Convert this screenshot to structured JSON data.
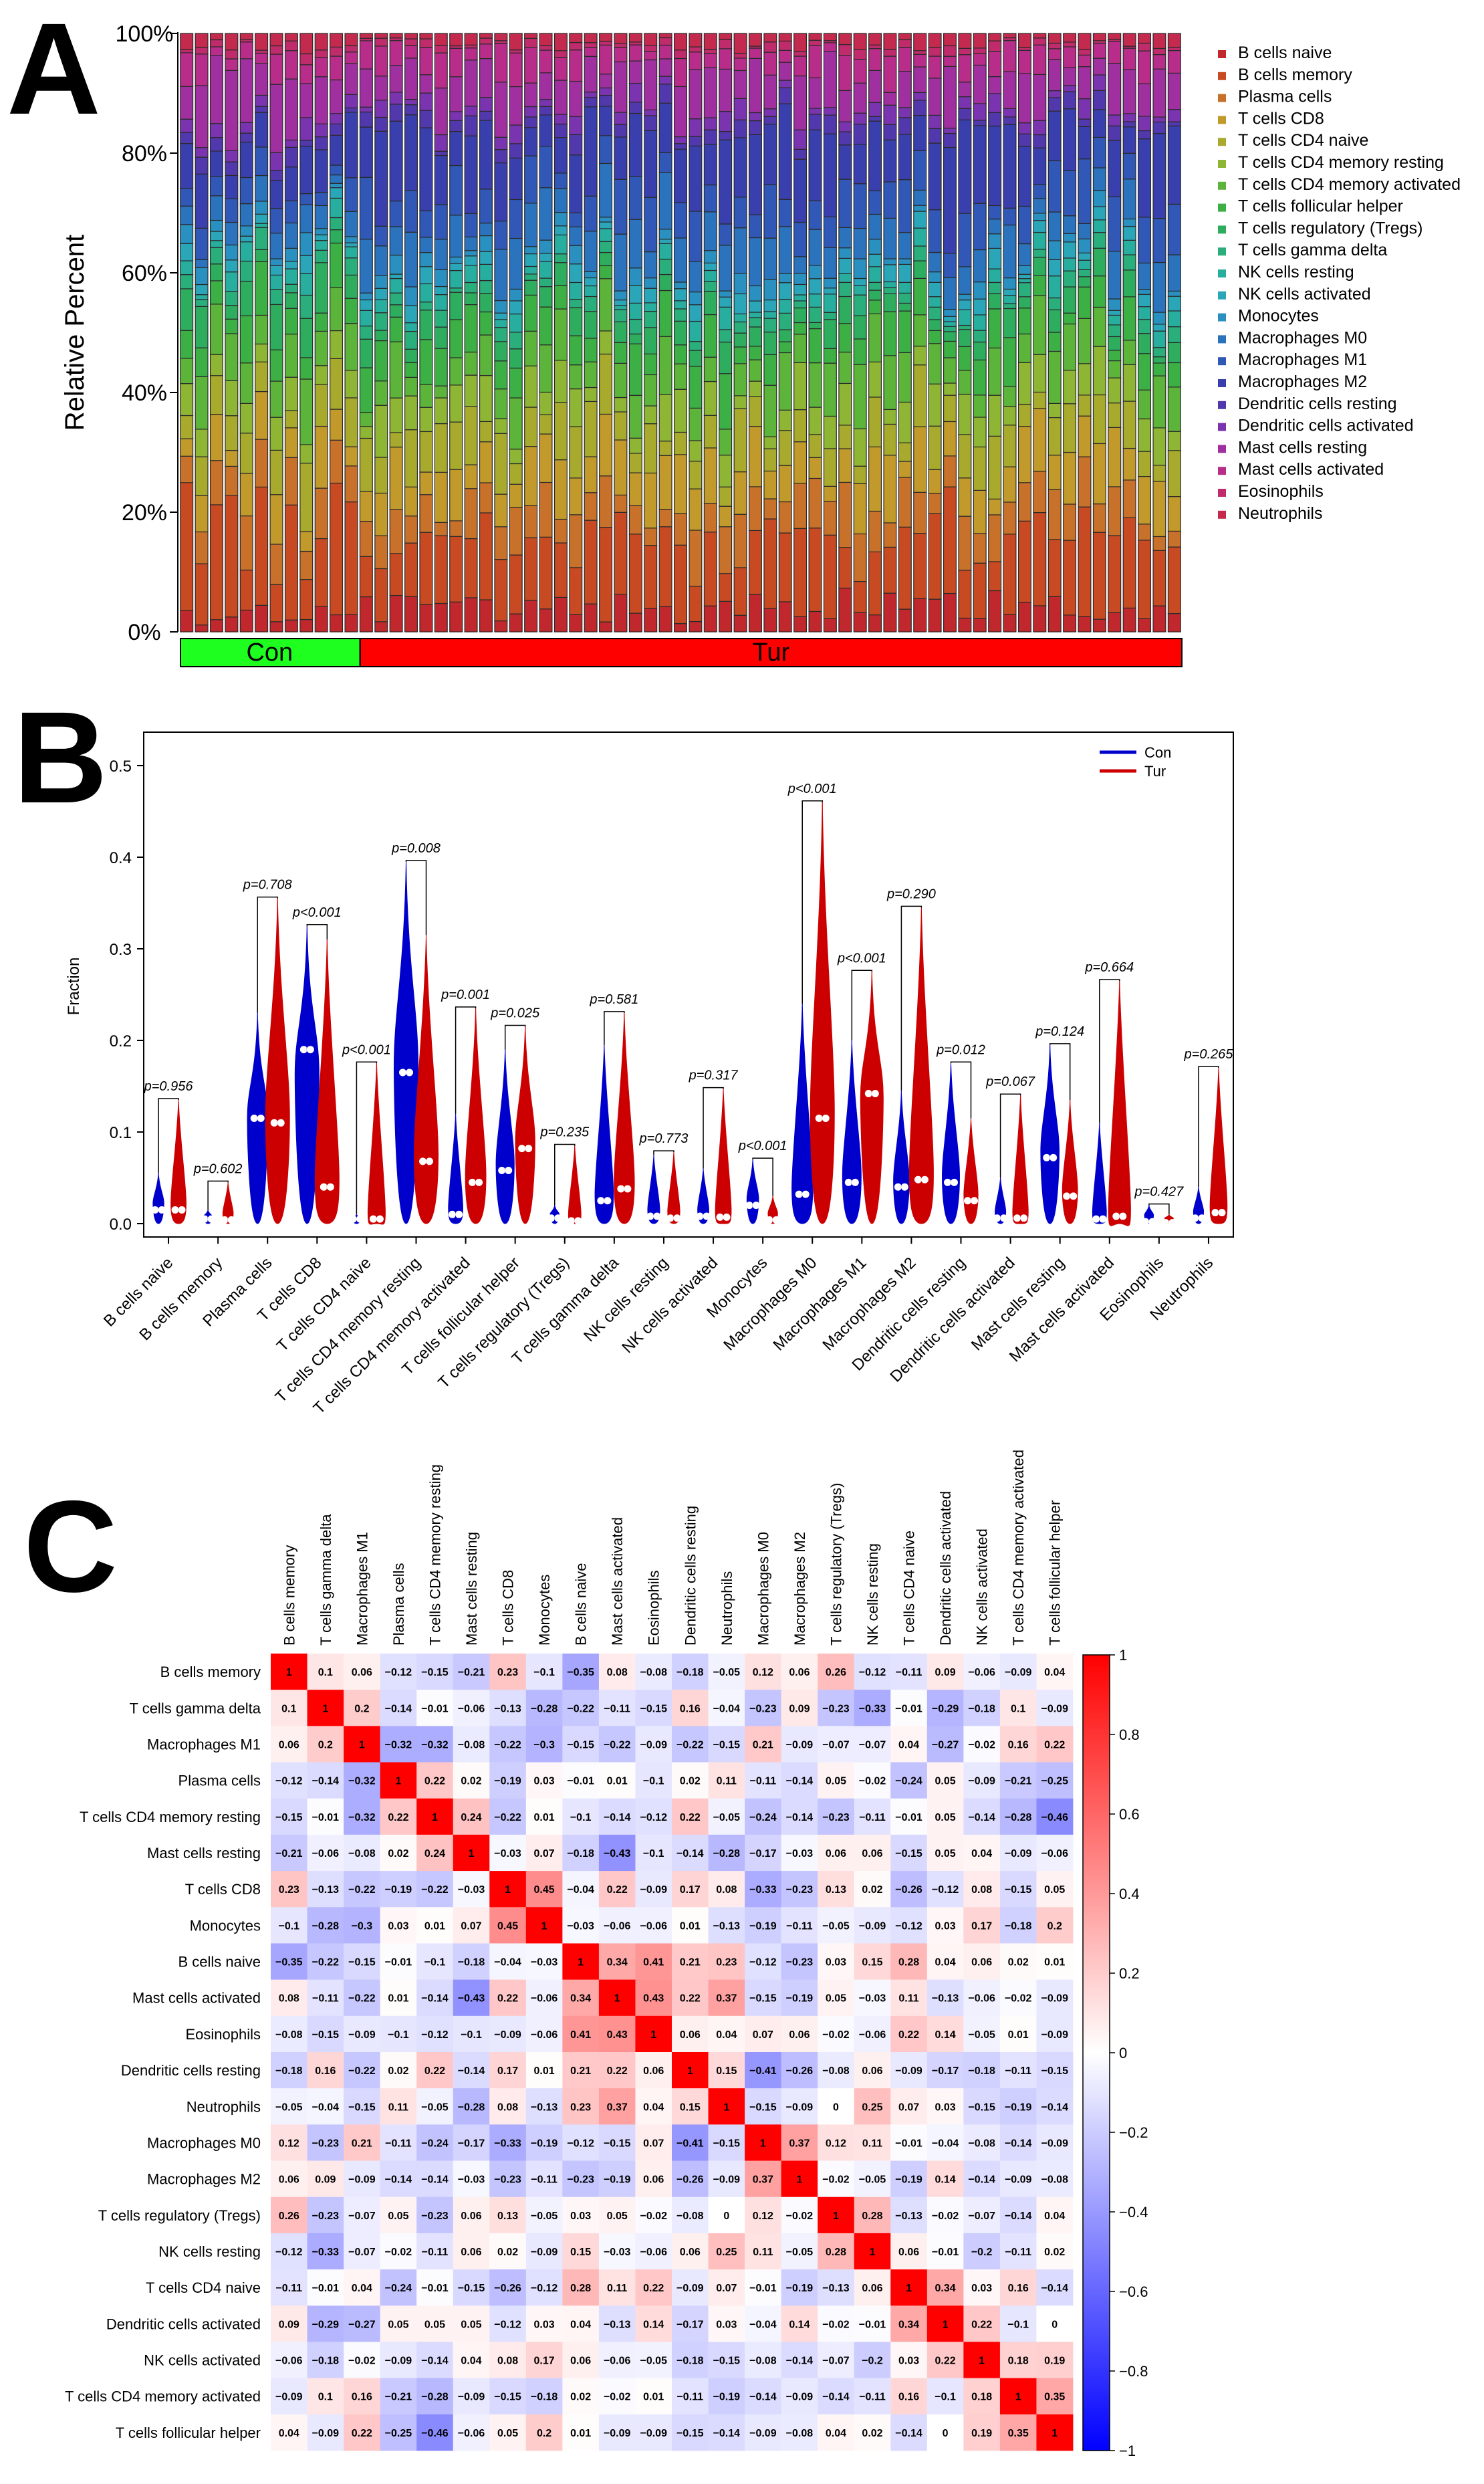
{
  "panel_letters": [
    "A",
    "B",
    "C"
  ],
  "colors": {
    "con": "#1FFF1F",
    "tur": "#FF0000",
    "violin_con": "#0000CC",
    "violin_tur": "#CC0000",
    "corr_pos": "#FF0000",
    "corr_neg": "#0000FF"
  },
  "chart_data": [
    {
      "panel": "A",
      "type": "bar",
      "stacked": true,
      "ylabel": "Relative Percent",
      "yticks": [
        "0%",
        "20%",
        "40%",
        "60%",
        "80%",
        "100%"
      ],
      "ylim": [
        0,
        100
      ],
      "groups": [
        {
          "name": "Con",
          "count": 12
        },
        {
          "name": "Tur",
          "count": 55
        }
      ],
      "legend": [
        {
          "name": "B cells naive",
          "color": "#C0282D"
        },
        {
          "name": "B cells memory",
          "color": "#C84A22"
        },
        {
          "name": "Plasma cells",
          "color": "#C8712A"
        },
        {
          "name": "T cells CD8",
          "color": "#C19A2B"
        },
        {
          "name": "T cells CD4 naive",
          "color": "#A8AA2E"
        },
        {
          "name": "T cells CD4 memory resting",
          "color": "#8EB534"
        },
        {
          "name": "T cells CD4 memory activated",
          "color": "#5DB43A"
        },
        {
          "name": "T cells follicular helper",
          "color": "#3DB045"
        },
        {
          "name": "T cells regulatory (Tregs)",
          "color": "#2EAD5E"
        },
        {
          "name": "T cells gamma delta",
          "color": "#2AAE7C"
        },
        {
          "name": "NK cells resting",
          "color": "#27AE9F"
        },
        {
          "name": "NK cells activated",
          "color": "#2AA6B8"
        },
        {
          "name": "Monocytes",
          "color": "#2A90C0"
        },
        {
          "name": "Macrophages M0",
          "color": "#2C73BD"
        },
        {
          "name": "Macrophages M1",
          "color": "#3158B6"
        },
        {
          "name": "Macrophages M2",
          "color": "#3A3FAE"
        },
        {
          "name": "Dendritic cells resting",
          "color": "#5238AD"
        },
        {
          "name": "Dendritic cells activated",
          "color": "#7A34B0"
        },
        {
          "name": "Mast cells resting",
          "color": "#A0309F"
        },
        {
          "name": "Mast cells activated",
          "color": "#B82D8A"
        },
        {
          "name": "Eosinophils",
          "color": "#C02C6B"
        },
        {
          "name": "Neutrophils",
          "color": "#C32A4D"
        }
      ],
      "mean_composition_con": [
        3,
        14,
        6,
        6,
        6,
        4,
        7,
        6,
        5,
        3,
        2,
        2,
        2,
        3,
        4,
        8,
        2,
        2,
        8,
        4,
        1,
        2
      ],
      "mean_composition_tur": [
        4,
        10,
        6,
        7,
        6,
        5,
        6,
        5,
        3,
        2,
        2,
        2,
        2,
        6,
        6,
        10,
        2,
        2,
        6,
        4,
        1,
        2
      ]
    },
    {
      "panel": "B",
      "type": "violin",
      "ylabel": "Fraction",
      "ylim": [
        0,
        0.52
      ],
      "yticks": [
        "0.0",
        "0.1",
        "0.2",
        "0.3",
        "0.4",
        "0.5"
      ],
      "series": [
        {
          "name": "Con"
        },
        {
          "name": "Tur"
        }
      ],
      "categories": [
        "B cells naive",
        "B cells memory",
        "Plasma cells",
        "T cells CD8",
        "T cells CD4 naive",
        "T cells CD4 memory resting",
        "T cells CD4 memory activated",
        "T cells follicular helper",
        "T cells regulatory (Tregs)",
        "T cells gamma delta",
        "NK cells resting",
        "NK cells activated",
        "Monocytes",
        "Macrophages M0",
        "Macrophages M1",
        "Macrophages M2",
        "Dendritic cells resting",
        "Dendritic cells activated",
        "Mast cells resting",
        "Mast cells activated",
        "Eosinophils",
        "Neutrophils"
      ],
      "p_values": [
        "p=0.956",
        "p=0.602",
        "p=0.708",
        "p<0.001",
        "p<0.001",
        "p=0.008",
        "p=0.001",
        "p=0.025",
        "p=0.235",
        "p=0.581",
        "p=0.773",
        "p=0.317",
        "p<0.001",
        "p<0.001",
        "p<0.001",
        "p=0.290",
        "p=0.012",
        "p=0.067",
        "p=0.124",
        "p=0.664",
        "p=0.427",
        "p=0.265"
      ],
      "con_max": [
        0.055,
        0.015,
        0.23,
        0.325,
        0.01,
        0.395,
        0.12,
        0.19,
        0.02,
        0.195,
        0.075,
        0.06,
        0.07,
        0.24,
        0.2,
        0.145,
        0.175,
        0.05,
        0.195,
        0.11,
        0.02,
        0.04
      ],
      "con_median": [
        0.015,
        0.005,
        0.115,
        0.19,
        0.005,
        0.165,
        0.01,
        0.058,
        0.006,
        0.025,
        0.008,
        0.008,
        0.02,
        0.032,
        0.045,
        0.04,
        0.045,
        0.006,
        0.072,
        0.005,
        0.002,
        0.006
      ],
      "tur_max": [
        0.135,
        0.045,
        0.355,
        0.31,
        0.175,
        0.315,
        0.235,
        0.215,
        0.085,
        0.23,
        0.078,
        0.147,
        0.03,
        0.46,
        0.275,
        0.345,
        0.115,
        0.14,
        0.135,
        0.265,
        0.01,
        0.17
      ],
      "tur_median": [
        0.015,
        0.004,
        0.11,
        0.04,
        0.005,
        0.068,
        0.045,
        0.082,
        0.003,
        0.038,
        0.006,
        0.007,
        0.004,
        0.115,
        0.142,
        0.048,
        0.025,
        0.006,
        0.03,
        0.008,
        0.001,
        0.012
      ]
    },
    {
      "panel": "C",
      "type": "heatmap",
      "labels": [
        "B cells memory",
        "T cells gamma delta",
        "Macrophages M1",
        "Plasma cells",
        "T cells CD4 memory resting",
        "Mast cells resting",
        "T cells CD8",
        "Monocytes",
        "B cells naive",
        "Mast cells activated",
        "Eosinophils",
        "Dendritic cells resting",
        "Neutrophils",
        "Macrophages M0",
        "Macrophages M2",
        "T cells regulatory (Tregs)",
        "NK cells resting",
        "T cells CD4 naive",
        "Dendritic cells activated",
        "NK cells activated",
        "T cells CD4 memory activated",
        "T cells follicular helper"
      ],
      "colorbar_ticks": [
        "1",
        "0.8",
        "0.6",
        "0.4",
        "0.2",
        "0",
        "−0.2",
        "−0.4",
        "−0.6",
        "−0.8",
        "−1"
      ],
      "values": [
        [
          1,
          0.1,
          0.06,
          -0.12,
          -0.15,
          -0.21,
          0.23,
          -0.1,
          -0.35,
          0.08,
          -0.08,
          -0.18,
          -0.05,
          0.12,
          0.06,
          0.26,
          -0.12,
          -0.11,
          0.09,
          -0.06,
          -0.09,
          0.04
        ],
        [
          0.1,
          1,
          0.2,
          -0.14,
          -0.01,
          -0.06,
          -0.13,
          -0.28,
          -0.22,
          -0.11,
          -0.15,
          0.16,
          -0.04,
          -0.23,
          0.09,
          -0.23,
          -0.33,
          -0.01,
          -0.29,
          -0.18,
          0.1,
          -0.09
        ],
        [
          0.06,
          0.2,
          1,
          -0.32,
          -0.32,
          -0.08,
          -0.22,
          -0.3,
          -0.15,
          -0.22,
          -0.09,
          -0.22,
          -0.15,
          0.21,
          -0.09,
          -0.07,
          -0.07,
          0.04,
          -0.27,
          -0.02,
          0.16,
          0.22
        ],
        [
          -0.12,
          -0.14,
          -0.32,
          1,
          0.22,
          0.02,
          -0.19,
          0.03,
          -0.01,
          0.01,
          -0.1,
          0.02,
          0.11,
          -0.11,
          -0.14,
          0.05,
          -0.02,
          -0.24,
          0.05,
          -0.09,
          -0.21,
          -0.25
        ],
        [
          -0.15,
          -0.01,
          -0.32,
          0.22,
          1,
          0.24,
          -0.22,
          0.01,
          -0.1,
          -0.14,
          -0.12,
          0.22,
          -0.05,
          -0.24,
          -0.14,
          -0.23,
          -0.11,
          -0.01,
          0.05,
          -0.14,
          -0.28,
          -0.46
        ],
        [
          -0.21,
          -0.06,
          -0.08,
          0.02,
          0.24,
          1,
          -0.03,
          0.07,
          -0.18,
          -0.43,
          -0.1,
          -0.14,
          -0.28,
          -0.17,
          -0.03,
          0.06,
          0.06,
          -0.15,
          0.05,
          0.04,
          -0.09,
          -0.06
        ],
        [
          0.23,
          -0.13,
          -0.22,
          -0.19,
          -0.22,
          -0.03,
          1,
          0.45,
          -0.04,
          0.22,
          -0.09,
          0.17,
          0.08,
          -0.33,
          -0.23,
          0.13,
          0.02,
          -0.26,
          -0.12,
          0.08,
          -0.15,
          0.05
        ],
        [
          -0.1,
          -0.28,
          -0.3,
          0.03,
          0.01,
          0.07,
          0.45,
          1,
          -0.03,
          -0.06,
          -0.06,
          0.01,
          -0.13,
          -0.19,
          -0.11,
          -0.05,
          -0.09,
          -0.12,
          0.03,
          0.17,
          -0.18,
          0.2
        ],
        [
          -0.35,
          -0.22,
          -0.15,
          -0.01,
          -0.1,
          -0.18,
          -0.04,
          -0.03,
          1,
          0.34,
          0.41,
          0.21,
          0.23,
          -0.12,
          -0.23,
          0.03,
          0.15,
          0.28,
          0.04,
          0.06,
          0.02,
          0.01
        ],
        [
          0.08,
          -0.11,
          -0.22,
          0.01,
          -0.14,
          -0.43,
          0.22,
          -0.06,
          0.34,
          1,
          0.43,
          0.22,
          0.37,
          -0.15,
          -0.19,
          0.05,
          -0.03,
          0.11,
          -0.13,
          -0.06,
          -0.02,
          -0.09
        ],
        [
          -0.08,
          -0.15,
          -0.09,
          -0.1,
          -0.12,
          -0.1,
          -0.09,
          -0.06,
          0.41,
          0.43,
          1,
          0.06,
          0.04,
          0.07,
          0.06,
          -0.02,
          -0.06,
          0.22,
          0.14,
          -0.05,
          0.01,
          -0.09
        ],
        [
          -0.18,
          0.16,
          -0.22,
          0.02,
          0.22,
          -0.14,
          0.17,
          0.01,
          0.21,
          0.22,
          0.06,
          1,
          0.15,
          -0.41,
          -0.26,
          -0.08,
          0.06,
          -0.09,
          -0.17,
          -0.18,
          -0.11,
          -0.15
        ],
        [
          -0.05,
          -0.04,
          -0.15,
          0.11,
          -0.05,
          -0.28,
          0.08,
          -0.13,
          0.23,
          0.37,
          0.04,
          0.15,
          1,
          -0.15,
          -0.09,
          0,
          0.25,
          0.07,
          0.03,
          -0.15,
          -0.19,
          -0.14
        ],
        [
          0.12,
          -0.23,
          0.21,
          -0.11,
          -0.24,
          -0.17,
          -0.33,
          -0.19,
          -0.12,
          -0.15,
          0.07,
          -0.41,
          -0.15,
          1,
          0.37,
          0.12,
          0.11,
          -0.01,
          -0.04,
          -0.08,
          -0.14,
          -0.09
        ],
        [
          0.06,
          0.09,
          -0.09,
          -0.14,
          -0.14,
          -0.03,
          -0.23,
          -0.11,
          -0.23,
          -0.19,
          0.06,
          -0.26,
          -0.09,
          0.37,
          1,
          -0.02,
          -0.05,
          -0.19,
          0.14,
          -0.14,
          -0.09,
          -0.08
        ],
        [
          0.26,
          -0.23,
          -0.07,
          0.05,
          -0.23,
          0.06,
          0.13,
          -0.05,
          0.03,
          0.05,
          -0.02,
          -0.08,
          0,
          0.12,
          -0.02,
          1,
          0.28,
          -0.13,
          -0.02,
          -0.07,
          -0.14,
          0.04
        ],
        [
          -0.12,
          -0.33,
          -0.07,
          -0.02,
          -0.11,
          0.06,
          0.02,
          -0.09,
          0.15,
          -0.03,
          -0.06,
          0.06,
          0.25,
          0.11,
          -0.05,
          0.28,
          1,
          0.06,
          -0.01,
          -0.2,
          -0.11,
          0.02
        ],
        [
          -0.11,
          -0.01,
          0.04,
          -0.24,
          -0.01,
          -0.15,
          -0.26,
          -0.12,
          0.28,
          0.11,
          0.22,
          -0.09,
          0.07,
          -0.01,
          -0.19,
          -0.13,
          0.06,
          1,
          0.34,
          0.03,
          0.16,
          -0.14
        ],
        [
          0.09,
          -0.29,
          -0.27,
          0.05,
          0.05,
          0.05,
          -0.12,
          0.03,
          0.04,
          -0.13,
          0.14,
          -0.17,
          0.03,
          -0.04,
          0.14,
          -0.02,
          -0.01,
          0.34,
          1,
          0.22,
          -0.1,
          0
        ],
        [
          -0.06,
          -0.18,
          -0.02,
          -0.09,
          -0.14,
          0.04,
          0.08,
          0.17,
          0.06,
          -0.06,
          -0.05,
          -0.18,
          -0.15,
          -0.08,
          -0.14,
          -0.07,
          -0.2,
          0.03,
          0.22,
          1,
          0.18,
          0.19
        ],
        [
          -0.09,
          0.1,
          0.16,
          -0.21,
          -0.28,
          -0.09,
          -0.15,
          -0.18,
          0.02,
          -0.02,
          0.01,
          -0.11,
          -0.19,
          -0.14,
          -0.09,
          -0.14,
          -0.11,
          0.16,
          -0.1,
          0.18,
          1,
          0.35
        ],
        [
          0.04,
          -0.09,
          0.22,
          -0.25,
          -0.46,
          -0.06,
          0.05,
          0.2,
          0.01,
          -0.09,
          -0.09,
          -0.15,
          -0.14,
          -0.09,
          -0.08,
          0.04,
          0.02,
          -0.14,
          0,
          0.19,
          0.35,
          1
        ]
      ]
    }
  ]
}
